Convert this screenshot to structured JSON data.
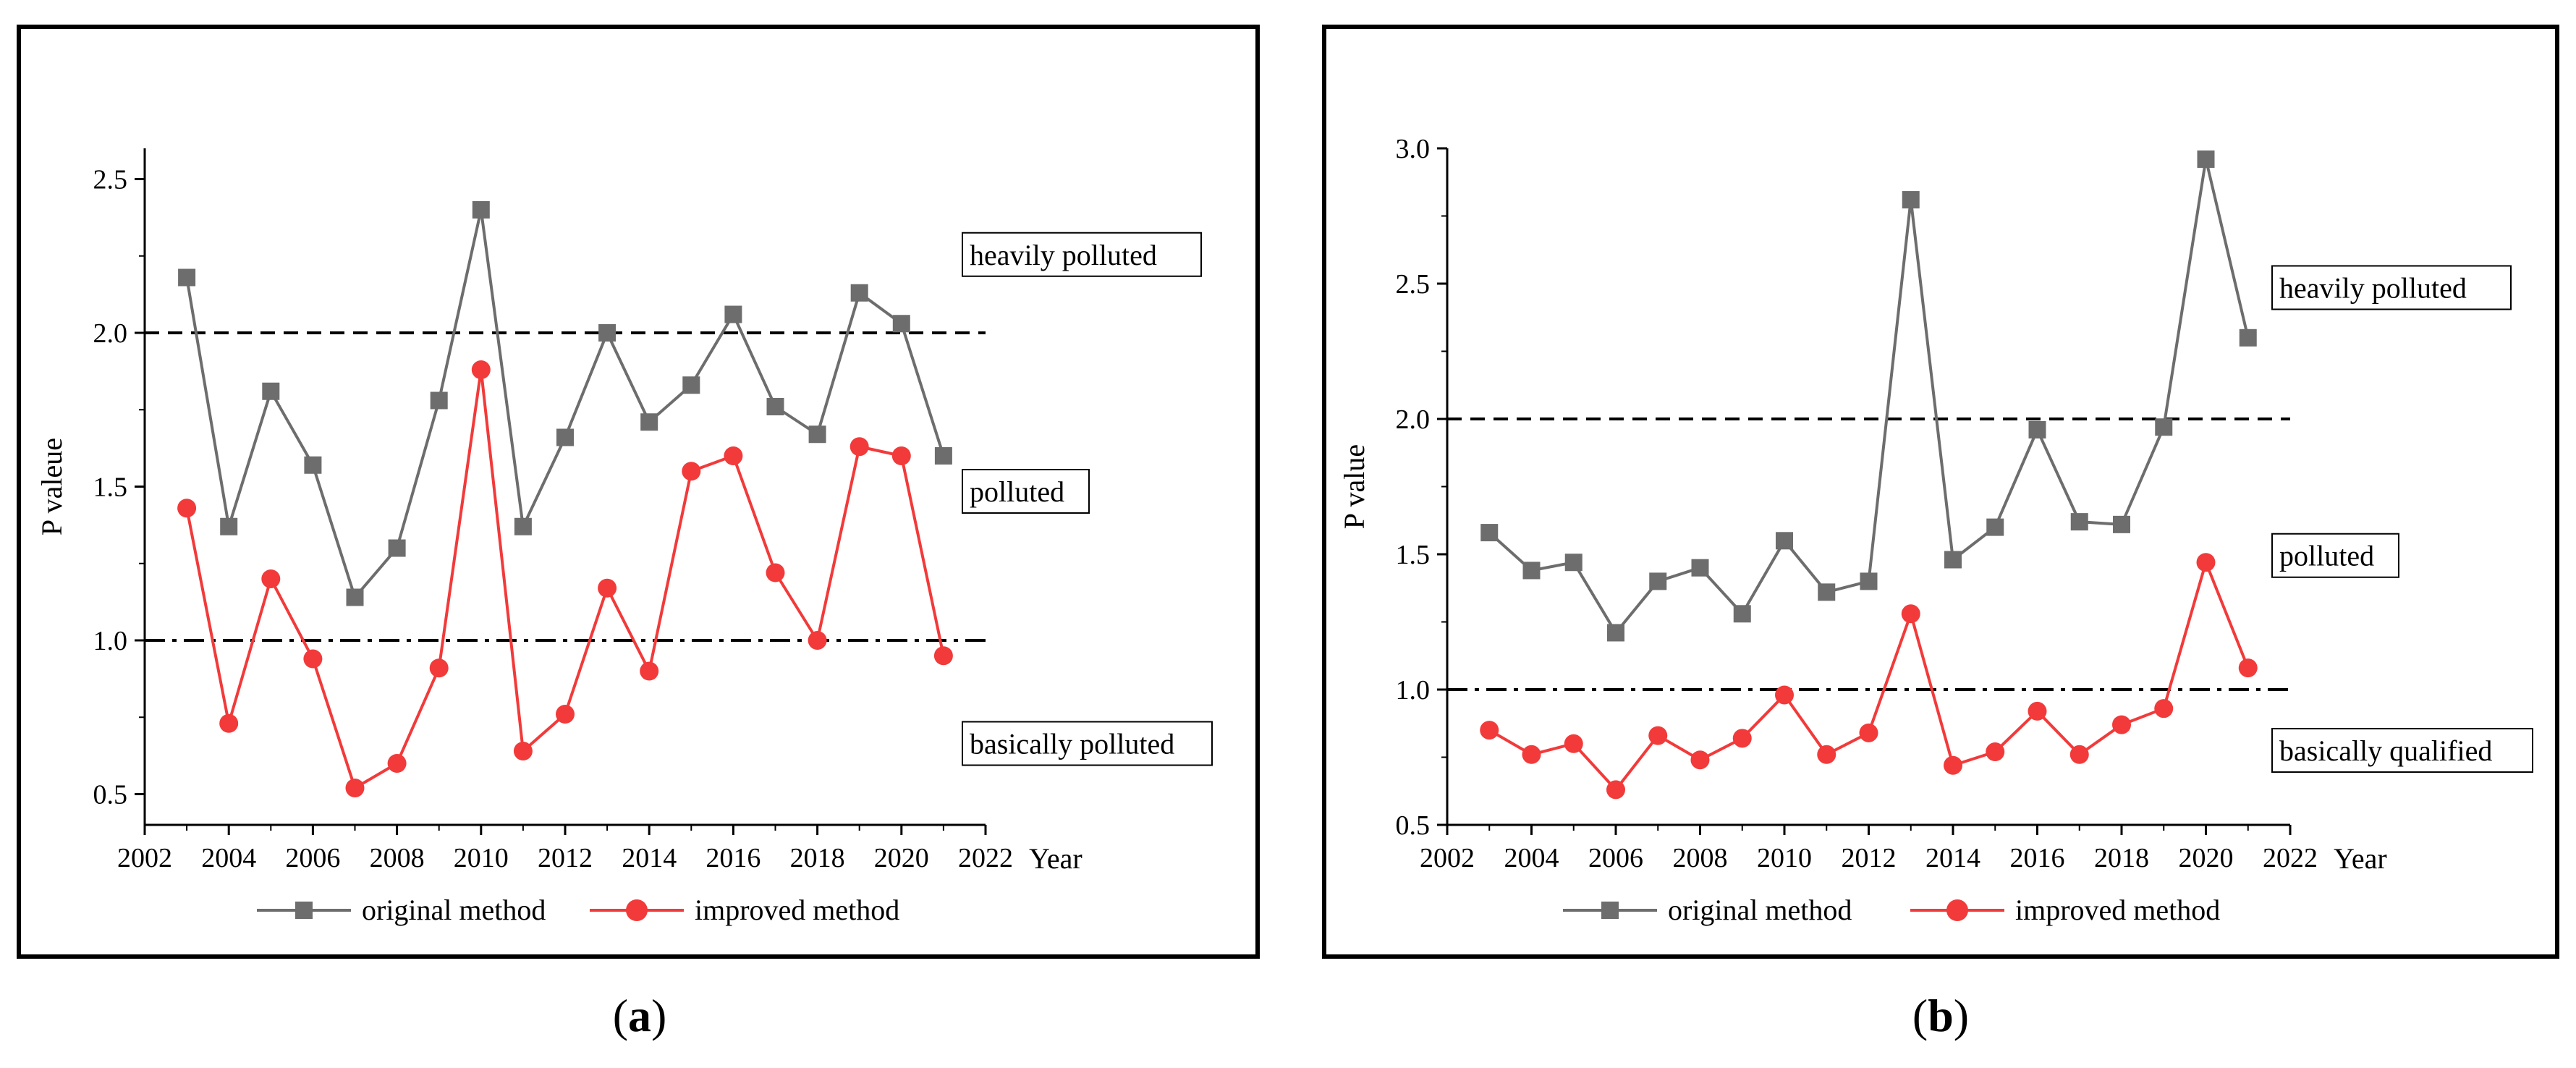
{
  "chart_data": [
    {
      "type": "line",
      "panel_label": "a",
      "xlabel": "Year",
      "ylabel": "P valeue",
      "xlim": [
        2002,
        2022
      ],
      "ylim": [
        0.4,
        2.6
      ],
      "xticks": [
        2002,
        2004,
        2006,
        2008,
        2010,
        2012,
        2014,
        2016,
        2018,
        2020,
        2022
      ],
      "xtick_labels": [
        "2002",
        "2004",
        "2006",
        "2008",
        "2010",
        "2012",
        "2014",
        "2016",
        "2018",
        "2020",
        "2022"
      ],
      "yticks": [
        0.5,
        1.0,
        1.5,
        2.0,
        2.5
      ],
      "ytick_labels": [
        "0.5",
        "1.0",
        "1.5",
        "2.0",
        "2.5"
      ],
      "x": [
        2003,
        2004,
        2005,
        2006,
        2007,
        2008,
        2009,
        2010,
        2011,
        2012,
        2013,
        2014,
        2015,
        2016,
        2017,
        2018,
        2019,
        2020,
        2021
      ],
      "series": [
        {
          "name": "original method",
          "color": "#6d6d6d",
          "marker": "square",
          "values": [
            2.18,
            1.37,
            1.81,
            1.57,
            1.14,
            1.3,
            1.78,
            2.4,
            1.37,
            1.66,
            2.0,
            1.71,
            1.83,
            2.06,
            1.76,
            1.67,
            2.13,
            2.03,
            1.6
          ]
        },
        {
          "name": "improved method",
          "color": "#f23a3a",
          "marker": "circle",
          "values": [
            1.43,
            0.73,
            1.2,
            0.94,
            0.52,
            0.6,
            0.91,
            1.88,
            0.64,
            0.76,
            1.17,
            0.9,
            1.55,
            1.6,
            1.22,
            1.0,
            1.63,
            1.6,
            0.95
          ]
        }
      ],
      "reference_lines": [
        {
          "y": 2.0,
          "style": "dashed"
        },
        {
          "y": 1.0,
          "style": "dash-dot"
        }
      ],
      "annotations": [
        {
          "text": "heavily polluted",
          "y": 2.25
        },
        {
          "text": "polluted",
          "y": 1.48
        },
        {
          "text": "basically polluted",
          "y": 0.66
        }
      ],
      "legend_position": "bottom"
    },
    {
      "type": "line",
      "panel_label": "b",
      "xlabel": "Year",
      "ylabel": "P value",
      "xlim": [
        2002,
        2022
      ],
      "ylim": [
        0.5,
        3.0
      ],
      "xticks": [
        2002,
        2004,
        2006,
        2008,
        2010,
        2012,
        2014,
        2016,
        2018,
        2020,
        2022
      ],
      "xtick_labels": [
        "2002",
        "2004",
        "2006",
        "2008",
        "2010",
        "2012",
        "2014",
        "2016",
        "2018",
        "2020",
        "2022"
      ],
      "yticks": [
        0.5,
        1.0,
        1.5,
        2.0,
        2.5,
        3.0
      ],
      "ytick_labels": [
        "0.5",
        "1.0",
        "1.5",
        "2.0",
        "2.5",
        "3.0"
      ],
      "x": [
        2003,
        2004,
        2005,
        2006,
        2007,
        2008,
        2009,
        2010,
        2011,
        2012,
        2013,
        2014,
        2015,
        2016,
        2017,
        2018,
        2019,
        2020,
        2021
      ],
      "series": [
        {
          "name": "original method",
          "color": "#6d6d6d",
          "marker": "square",
          "values": [
            1.58,
            1.44,
            1.47,
            1.21,
            1.4,
            1.45,
            1.28,
            1.55,
            1.36,
            1.4,
            2.81,
            1.48,
            1.6,
            1.96,
            1.62,
            1.61,
            1.97,
            2.96,
            2.3
          ]
        },
        {
          "name": "improved method",
          "color": "#f23a3a",
          "marker": "circle",
          "values": [
            0.85,
            0.76,
            0.8,
            0.63,
            0.83,
            0.74,
            0.82,
            0.98,
            0.76,
            0.84,
            1.28,
            0.72,
            0.77,
            0.92,
            0.76,
            0.87,
            0.93,
            1.47,
            1.08
          ]
        }
      ],
      "reference_lines": [
        {
          "y": 2.0,
          "style": "dashed"
        },
        {
          "y": 1.0,
          "style": "dash-dot"
        }
      ],
      "annotations": [
        {
          "text": "heavily polluted",
          "y": 2.48
        },
        {
          "text": "polluted",
          "y": 1.49
        },
        {
          "text": "basically qualified",
          "y": 0.77
        }
      ],
      "legend_position": "bottom"
    }
  ]
}
